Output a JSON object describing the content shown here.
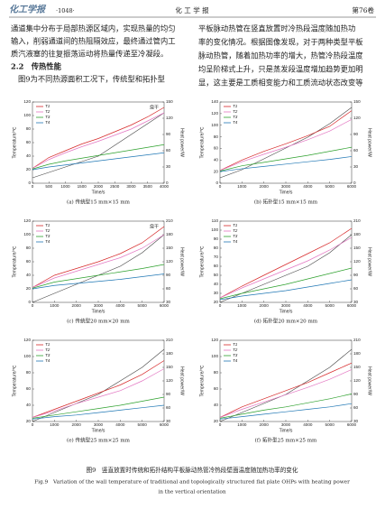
{
  "header": {
    "logo": "化工学报",
    "page": "·1048·",
    "journal": "化 工 学 报",
    "volume": "第76卷"
  },
  "body": {
    "left": [
      "通道集中分布于局部热源区域内，实现热量的均匀",
      "输入，削弱通道间的热阻隔效应，最终通过管内工",
      "质汽液塞的往复振荡运动将热量传递至冷凝段。"
    ],
    "heading": "2.2　传热性能",
    "left_after": [
      "图9为不同热源面积工况下，传统型和拓扑型"
    ],
    "right": [
      "平板脉动热管在竖直放置时冷热段温度随加热功",
      "率的变化情况。根据图像发现，对于两种类型平板",
      "脉动热管，随着加热功率的增大，热管冷热段温度",
      "均呈阶梯式上升，只是蒸发段温度增加趋势更加明",
      "显，这主要是工质相变能力和工质流动状态改变等"
    ]
  },
  "chart_data": [
    {
      "type": "line",
      "subcaption": "(a) 传统型15 mm×15 mm",
      "xlabel": "Time/s",
      "ylabel": "Temperature/℃",
      "y2label": "Heat power/W",
      "annotation": "烧干",
      "x": [
        0,
        500,
        1000,
        1500,
        2000,
        2500,
        3000,
        3500,
        4000
      ],
      "xlim": [
        0,
        4000
      ],
      "xticks": [
        0,
        500,
        1000,
        1500,
        2000,
        2500,
        3000,
        3500,
        4000
      ],
      "ylim": [
        0,
        120
      ],
      "yticks": [
        0,
        20,
        40,
        60,
        80,
        100,
        120
      ],
      "y2lim": [
        0,
        150
      ],
      "y2ticks": [
        0,
        30,
        60,
        90,
        120,
        150
      ],
      "series": [
        {
          "name": "T1",
          "color": "#d62728",
          "values": [
            22,
            38,
            48,
            58,
            66,
            76,
            86,
            98,
            112
          ]
        },
        {
          "name": "T2",
          "color": "#e377c2",
          "values": [
            22,
            35,
            45,
            54,
            62,
            71,
            80,
            92,
            104
          ]
        },
        {
          "name": "T3",
          "color": "#2ca02c",
          "values": [
            21,
            28,
            33,
            37,
            41,
            45,
            49,
            53,
            57
          ]
        },
        {
          "name": "T4",
          "color": "#1f77b4",
          "values": [
            20,
            24,
            27,
            30,
            33,
            36,
            39,
            42,
            45
          ]
        }
      ],
      "power": {
        "color": "#444444",
        "axis": "y2",
        "values": [
          10,
          20,
          30,
          40,
          50,
          70,
          90,
          110,
          130
        ]
      }
    },
    {
      "type": "line",
      "subcaption": "(b) 拓扑型15 mm×15 mm",
      "xlabel": "Time/s",
      "ylabel": "Temperature/℃",
      "y2label": "Heat power/W",
      "x": [
        0,
        1000,
        2000,
        3000,
        4000,
        5000,
        6000
      ],
      "xlim": [
        0,
        6000
      ],
      "xticks": [
        0,
        1000,
        2000,
        3000,
        4000,
        5000,
        6000
      ],
      "ylim": [
        0,
        140
      ],
      "yticks": [
        0,
        20,
        40,
        60,
        80,
        100,
        120,
        140
      ],
      "y2lim": [
        0,
        150
      ],
      "y2ticks": [
        0,
        30,
        60,
        90,
        120,
        150
      ],
      "series": [
        {
          "name": "T1",
          "color": "#d62728",
          "values": [
            22,
            40,
            55,
            68,
            82,
            98,
            125
          ]
        },
        {
          "name": "T2",
          "color": "#e377c2",
          "values": [
            22,
            37,
            50,
            62,
            75,
            90,
            110
          ]
        },
        {
          "name": "T3",
          "color": "#2ca02c",
          "values": [
            21,
            30,
            36,
            42,
            48,
            55,
            62
          ]
        },
        {
          "name": "T4",
          "color": "#1f77b4",
          "values": [
            20,
            25,
            29,
            33,
            37,
            41,
            46
          ]
        }
      ],
      "power": {
        "color": "#444444",
        "axis": "y2",
        "values": [
          10,
          25,
          45,
          65,
          85,
          110,
          140
        ]
      }
    },
    {
      "type": "line",
      "subcaption": "(c) 传统型20 mm×20 mm",
      "xlabel": "Time/s",
      "ylabel": "Temperature/℃",
      "y2label": "Heat power/W",
      "annotation": "烧干",
      "x": [
        0,
        1000,
        2000,
        3000,
        4000,
        5000,
        6000
      ],
      "xlim": [
        0,
        6000
      ],
      "xticks": [
        0,
        1000,
        2000,
        3000,
        4000,
        5000,
        6000
      ],
      "ylim": [
        0,
        120
      ],
      "yticks": [
        0,
        20,
        40,
        60,
        80,
        100,
        120
      ],
      "y2lim": [
        30,
        210
      ],
      "y2ticks": [
        30,
        60,
        90,
        120,
        150,
        180,
        210
      ],
      "series": [
        {
          "name": "T1",
          "color": "#d62728",
          "values": [
            22,
            40,
            50,
            60,
            72,
            88,
            112
          ]
        },
        {
          "name": "T2",
          "color": "#e377c2",
          "values": [
            22,
            36,
            46,
            56,
            66,
            80,
            100
          ]
        },
        {
          "name": "T3",
          "color": "#2ca02c",
          "values": [
            21,
            30,
            35,
            40,
            45,
            50,
            56
          ]
        },
        {
          "name": "T4",
          "color": "#1f77b4",
          "values": [
            20,
            25,
            28,
            31,
            34,
            38,
            42
          ]
        }
      ],
      "power": {
        "color": "#444444",
        "axis": "y2",
        "values": [
          30,
          50,
          70,
          90,
          110,
          140,
          180
        ]
      }
    },
    {
      "type": "line",
      "subcaption": "(d) 拓扑型20 mm×20 mm",
      "xlabel": "Time/s",
      "ylabel": "Temperature/℃",
      "y2label": "Heat power/W",
      "x": [
        0,
        1000,
        2000,
        3000,
        4000,
        5000,
        6000
      ],
      "xlim": [
        0,
        6000
      ],
      "xticks": [
        0,
        1000,
        2000,
        3000,
        4000,
        5000,
        6000
      ],
      "ylim": [
        20,
        110
      ],
      "yticks": [
        20,
        30,
        40,
        50,
        60,
        70,
        80,
        90,
        100,
        110
      ],
      "y2lim": [
        30,
        210
      ],
      "y2ticks": [
        30,
        60,
        90,
        120,
        150,
        180,
        210
      ],
      "series": [
        {
          "name": "T1",
          "color": "#d62728",
          "values": [
            25,
            38,
            50,
            62,
            74,
            86,
            102
          ]
        },
        {
          "name": "T2",
          "color": "#e377c2",
          "values": [
            25,
            36,
            46,
            56,
            66,
            78,
            92
          ]
        },
        {
          "name": "T3",
          "color": "#2ca02c",
          "values": [
            24,
            30,
            35,
            40,
            46,
            52,
            58
          ]
        },
        {
          "name": "T4",
          "color": "#1f77b4",
          "values": [
            23,
            27,
            30,
            33,
            37,
            41,
            45
          ]
        }
      ],
      "power": {
        "color": "#444444",
        "axis": "y2",
        "values": [
          30,
          50,
          70,
          90,
          110,
          140,
          180
        ]
      }
    },
    {
      "type": "line",
      "subcaption": "(e) 传统型25 mm×25 mm",
      "xlabel": "Time/s",
      "ylabel": "Temperature/℃",
      "y2label": "Heat power/W",
      "x": [
        0,
        1000,
        2000,
        3000,
        4000,
        5000,
        6000
      ],
      "xlim": [
        0,
        6000
      ],
      "xticks": [
        0,
        1000,
        2000,
        3000,
        4000,
        5000,
        6000
      ],
      "ylim": [
        20,
        120
      ],
      "yticks": [
        20,
        40,
        60,
        80,
        100,
        120
      ],
      "y2lim": [
        30,
        210
      ],
      "y2ticks": [
        30,
        60,
        90,
        120,
        150,
        180,
        210
      ],
      "series": [
        {
          "name": "T1",
          "color": "#d62728",
          "values": [
            25,
            35,
            45,
            55,
            65,
            78,
            95
          ]
        },
        {
          "name": "T2",
          "color": "#e377c2",
          "values": [
            25,
            33,
            42,
            50,
            58,
            70,
            85
          ]
        },
        {
          "name": "T3",
          "color": "#2ca02c",
          "values": [
            24,
            28,
            32,
            36,
            40,
            45,
            50
          ]
        },
        {
          "name": "T4",
          "color": "#1f77b4",
          "values": [
            23,
            26,
            28,
            31,
            34,
            37,
            40
          ]
        }
      ],
      "power": {
        "color": "#444444",
        "axis": "y2",
        "values": [
          30,
          50,
          70,
          90,
          120,
          150,
          190
        ]
      }
    },
    {
      "type": "line",
      "subcaption": "(f) 拓扑型25 mm×25 mm",
      "xlabel": "Time/s",
      "ylabel": "Temperature/℃",
      "y2label": "Heat power/W",
      "x": [
        0,
        1000,
        2000,
        3000,
        4000,
        5000,
        6000
      ],
      "xlim": [
        0,
        6000
      ],
      "xticks": [
        0,
        1000,
        2000,
        3000,
        4000,
        5000,
        6000
      ],
      "ylim": [
        20,
        120
      ],
      "yticks": [
        20,
        40,
        60,
        80,
        100,
        120
      ],
      "y2lim": [
        30,
        210
      ],
      "y2ticks": [
        30,
        60,
        90,
        120,
        150,
        180,
        210
      ],
      "series": [
        {
          "name": "T1",
          "color": "#d62728",
          "values": [
            25,
            38,
            48,
            58,
            68,
            80,
            92
          ]
        },
        {
          "name": "T2",
          "color": "#e377c2",
          "values": [
            25,
            35,
            44,
            53,
            62,
            72,
            84
          ]
        },
        {
          "name": "T3",
          "color": "#2ca02c",
          "values": [
            24,
            29,
            34,
            38,
            43,
            48,
            54
          ]
        },
        {
          "name": "T4",
          "color": "#1f77b4",
          "values": [
            23,
            26,
            29,
            32,
            35,
            38,
            42
          ]
        }
      ],
      "power": {
        "color": "#444444",
        "axis": "y2",
        "values": [
          30,
          50,
          70,
          90,
          120,
          150,
          190
        ]
      }
    }
  ],
  "caption": {
    "zh": "图9　竖直放置时传统和拓扑结构平板脉动热管冷热段壁面温度随加热功率的变化",
    "en": [
      "Fig.9　Variation of the wall temperature of traditional and topologically structured flat plate OHPs with heating power",
      "in the vertical orientation"
    ]
  }
}
